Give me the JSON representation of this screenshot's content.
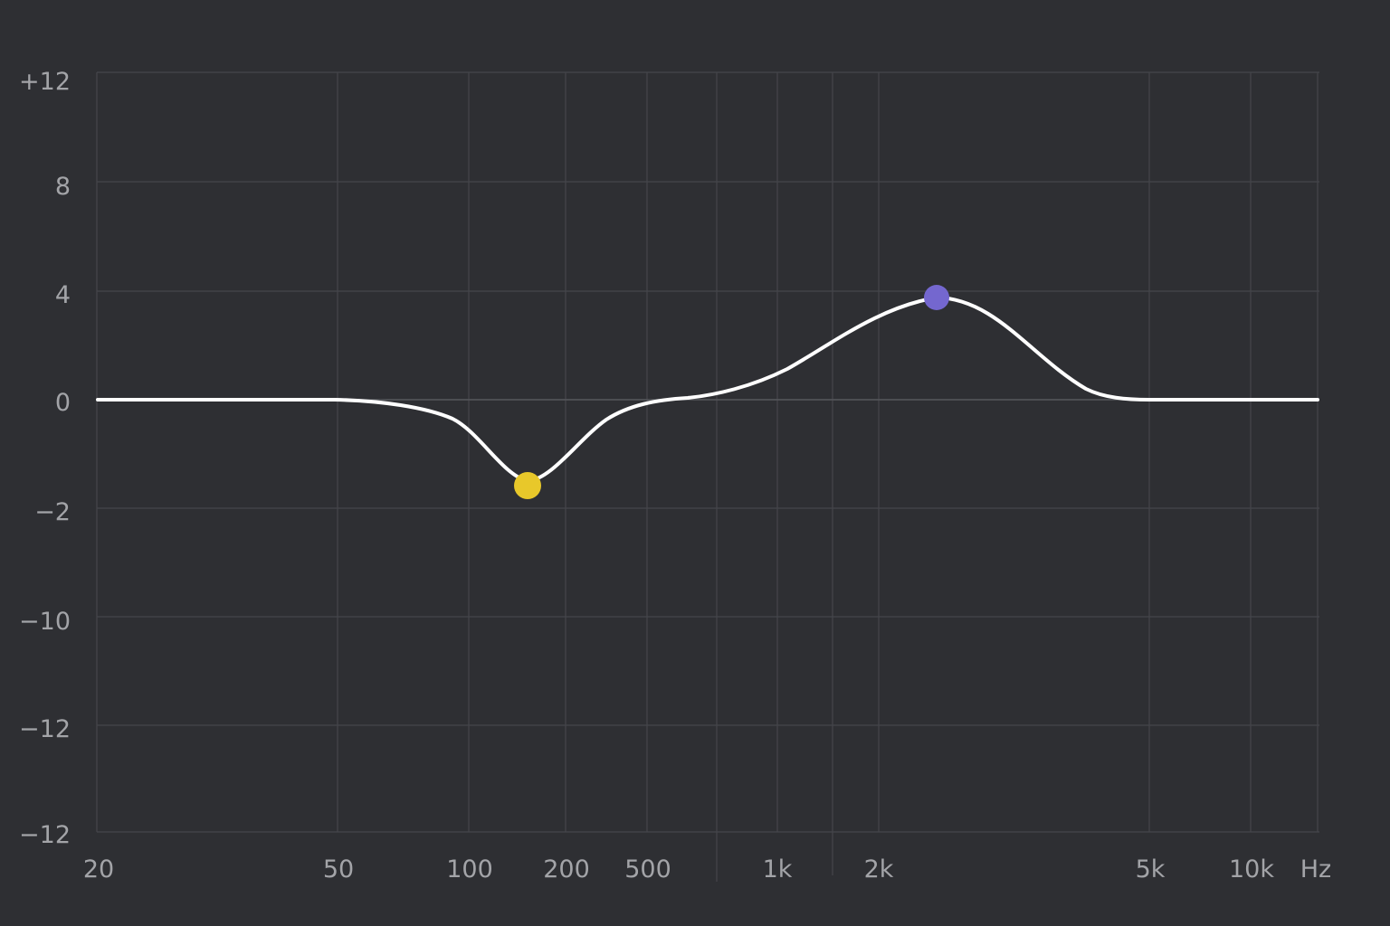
{
  "eq": {
    "y_ticks": [
      "+12",
      "8",
      "4",
      "0",
      "−2",
      "−10",
      "−12",
      "−12"
    ],
    "x_ticks": [
      "20",
      "50",
      "100",
      "200",
      "500",
      "1k",
      "2k",
      "5k",
      "10k"
    ],
    "x_unit": "Hz",
    "curve_color": "#ffffff",
    "grid_color": "#45464b",
    "background": "#2e2f33",
    "bands": [
      {
        "name": "band-1",
        "frequency_label": "150",
        "gain_db": -1.5,
        "color": "#e8c82a"
      },
      {
        "name": "band-2",
        "frequency_label": "2.7k",
        "gain_db": 3.8,
        "color": "#7467cf"
      }
    ]
  }
}
